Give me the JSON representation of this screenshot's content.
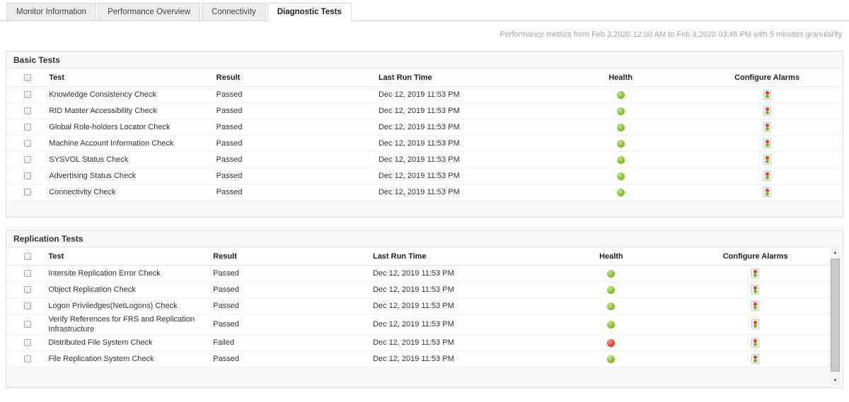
{
  "header": {
    "tabs": [
      {
        "label": "Monitor Information",
        "active": false
      },
      {
        "label": "Performance Overview",
        "active": false
      },
      {
        "label": "Connectivity",
        "active": false
      },
      {
        "label": "Diagnostic Tests",
        "active": true
      }
    ],
    "metrics_note": "Performance metrics from Feb 3,2020 12:00 AM to Feb 3,2020 03:46 PM with 5 minutes granularity"
  },
  "table_columns": {
    "test": "Test",
    "result": "Result",
    "last_run": "Last Run Time",
    "health": "Health",
    "configure_alarms": "Configure Alarms"
  },
  "sections": [
    {
      "title": "Basic Tests",
      "has_scrollbar": false,
      "rows": [
        {
          "test": "Knowledge Consistency Check",
          "result": "Passed",
          "last_run": "Dec 12, 2019 11:53 PM",
          "health": "green"
        },
        {
          "test": "RID Master Accessibility Check",
          "result": "Passed",
          "last_run": "Dec 12, 2019 11:53 PM",
          "health": "green"
        },
        {
          "test": "Global Role-holders Locator Check",
          "result": "Passed",
          "last_run": "Dec 12, 2019 11:53 PM",
          "health": "green"
        },
        {
          "test": "Machine Account Information Check",
          "result": "Passed",
          "last_run": "Dec 12, 2019 11:53 PM",
          "health": "green"
        },
        {
          "test": "SYSVOL Status Check",
          "result": "Passed",
          "last_run": "Dec 12, 2019 11:53 PM",
          "health": "green"
        },
        {
          "test": "Advertising Status Check",
          "result": "Passed",
          "last_run": "Dec 12, 2019 11:53 PM",
          "health": "green"
        },
        {
          "test": "Connectivity Check",
          "result": "Passed",
          "last_run": "Dec 12, 2019 11:53 PM",
          "health": "green"
        }
      ]
    },
    {
      "title": "Replication Tests",
      "has_scrollbar": true,
      "rows": [
        {
          "test": "Intersite Replication Error Check",
          "result": "Passed",
          "last_run": "Dec 12, 2019 11:53 PM",
          "health": "green"
        },
        {
          "test": "Object Replication Check",
          "result": "Passed",
          "last_run": "Dec 12, 2019 11:53 PM",
          "health": "green"
        },
        {
          "test": "Logon Priviledges(NetLogons) Check",
          "result": "Passed",
          "last_run": "Dec 12, 2019 11:53 PM",
          "health": "green"
        },
        {
          "test": "Verify References for FRS and Replication Infrastructure",
          "result": "Passed",
          "last_run": "Dec 12, 2019 11:53 PM",
          "health": "green"
        },
        {
          "test": "Distributed File System Check",
          "result": "Failed",
          "last_run": "Dec 12, 2019 11:53 PM",
          "health": "red"
        },
        {
          "test": "File Replication System Check",
          "result": "Passed",
          "last_run": "Dec 12, 2019 11:53 PM",
          "health": "green"
        }
      ]
    }
  ],
  "colors": {
    "health_green": "#7ab629",
    "health_red": "#e23318",
    "alarm_icon_red": "#e0401f",
    "alarm_icon_green": "#6fb51f"
  },
  "icons": {
    "health_ok": "green-led-icon",
    "health_critical": "red-led-icon",
    "configure_alarms": "alarm-severity-icon",
    "scroll_up_glyph": "▲",
    "scroll_down_glyph": "▼"
  }
}
